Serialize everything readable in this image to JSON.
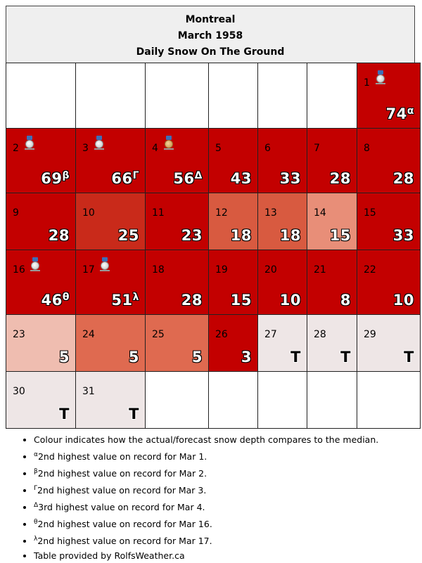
{
  "header": {
    "city": "Montreal",
    "month": "March 1958",
    "subtitle": "Daily Snow On The Ground"
  },
  "colors": {
    "deep_red": "#c30000",
    "red_2": "#c92a1a",
    "red_mid": "#d85a40",
    "salmon": "#e88e78",
    "light_salmon": "#efbdb0",
    "orange_red": "#df6a50",
    "trace_grey": "#eee6e6",
    "empty": "#ffffff"
  },
  "weeks": [
    [
      {
        "day": "",
        "value": "",
        "sup": "",
        "medal": "",
        "color": "empty"
      },
      {
        "day": "",
        "value": "",
        "sup": "",
        "medal": "",
        "color": "empty"
      },
      {
        "day": "",
        "value": "",
        "sup": "",
        "medal": "",
        "color": "empty"
      },
      {
        "day": "",
        "value": "",
        "sup": "",
        "medal": "",
        "color": "empty"
      },
      {
        "day": "",
        "value": "",
        "sup": "",
        "medal": "",
        "color": "empty"
      },
      {
        "day": "",
        "value": "",
        "sup": "",
        "medal": "",
        "color": "empty"
      },
      {
        "day": "1",
        "value": "74",
        "sup": "α",
        "medal": "silver",
        "color": "deep_red"
      }
    ],
    [
      {
        "day": "2",
        "value": "69",
        "sup": "β",
        "medal": "silver",
        "color": "deep_red"
      },
      {
        "day": "3",
        "value": "66",
        "sup": "Γ",
        "medal": "silver",
        "color": "deep_red"
      },
      {
        "day": "4",
        "value": "56",
        "sup": "Δ",
        "medal": "bronze",
        "color": "deep_red"
      },
      {
        "day": "5",
        "value": "43",
        "sup": "",
        "medal": "",
        "color": "deep_red"
      },
      {
        "day": "6",
        "value": "33",
        "sup": "",
        "medal": "",
        "color": "deep_red"
      },
      {
        "day": "7",
        "value": "28",
        "sup": "",
        "medal": "",
        "color": "deep_red"
      },
      {
        "day": "8",
        "value": "28",
        "sup": "",
        "medal": "",
        "color": "deep_red"
      }
    ],
    [
      {
        "day": "9",
        "value": "28",
        "sup": "",
        "medal": "",
        "color": "deep_red"
      },
      {
        "day": "10",
        "value": "25",
        "sup": "",
        "medal": "",
        "color": "red_2"
      },
      {
        "day": "11",
        "value": "23",
        "sup": "",
        "medal": "",
        "color": "deep_red"
      },
      {
        "day": "12",
        "value": "18",
        "sup": "",
        "medal": "",
        "color": "red_mid"
      },
      {
        "day": "13",
        "value": "18",
        "sup": "",
        "medal": "",
        "color": "red_mid"
      },
      {
        "day": "14",
        "value": "15",
        "sup": "",
        "medal": "",
        "color": "salmon"
      },
      {
        "day": "15",
        "value": "33",
        "sup": "",
        "medal": "",
        "color": "deep_red"
      }
    ],
    [
      {
        "day": "16",
        "value": "46",
        "sup": "θ",
        "medal": "silver",
        "color": "deep_red"
      },
      {
        "day": "17",
        "value": "51",
        "sup": "λ",
        "medal": "silver",
        "color": "deep_red"
      },
      {
        "day": "18",
        "value": "28",
        "sup": "",
        "medal": "",
        "color": "deep_red"
      },
      {
        "day": "19",
        "value": "15",
        "sup": "",
        "medal": "",
        "color": "deep_red"
      },
      {
        "day": "20",
        "value": "10",
        "sup": "",
        "medal": "",
        "color": "deep_red"
      },
      {
        "day": "21",
        "value": "8",
        "sup": "",
        "medal": "",
        "color": "deep_red"
      },
      {
        "day": "22",
        "value": "10",
        "sup": "",
        "medal": "",
        "color": "deep_red"
      }
    ],
    [
      {
        "day": "23",
        "value": "5",
        "sup": "",
        "medal": "",
        "color": "light_salmon"
      },
      {
        "day": "24",
        "value": "5",
        "sup": "",
        "medal": "",
        "color": "orange_red"
      },
      {
        "day": "25",
        "value": "5",
        "sup": "",
        "medal": "",
        "color": "orange_red"
      },
      {
        "day": "26",
        "value": "3",
        "sup": "",
        "medal": "",
        "color": "deep_red"
      },
      {
        "day": "27",
        "value": "T",
        "sup": "",
        "medal": "",
        "color": "trace_grey"
      },
      {
        "day": "28",
        "value": "T",
        "sup": "",
        "medal": "",
        "color": "trace_grey"
      },
      {
        "day": "29",
        "value": "T",
        "sup": "",
        "medal": "",
        "color": "trace_grey"
      }
    ],
    [
      {
        "day": "30",
        "value": "T",
        "sup": "",
        "medal": "",
        "color": "trace_grey"
      },
      {
        "day": "31",
        "value": "T",
        "sup": "",
        "medal": "",
        "color": "trace_grey"
      },
      {
        "day": "",
        "value": "",
        "sup": "",
        "medal": "",
        "color": "empty"
      },
      {
        "day": "",
        "value": "",
        "sup": "",
        "medal": "",
        "color": "empty"
      },
      {
        "day": "",
        "value": "",
        "sup": "",
        "medal": "",
        "color": "empty"
      },
      {
        "day": "",
        "value": "",
        "sup": "",
        "medal": "",
        "color": "empty"
      },
      {
        "day": "",
        "value": "",
        "sup": "",
        "medal": "",
        "color": "empty"
      }
    ]
  ],
  "notes": [
    {
      "sup": "",
      "text": "Colour indicates how the actual/forecast snow depth compares to the median."
    },
    {
      "sup": "α",
      "text": "2nd highest value on record for Mar 1."
    },
    {
      "sup": "β",
      "text": "2nd highest value on record for Mar 2."
    },
    {
      "sup": "Γ",
      "text": "2nd highest value on record for Mar 3."
    },
    {
      "sup": "Δ",
      "text": "3rd highest value on record for Mar 4."
    },
    {
      "sup": "θ",
      "text": "2nd highest value on record for Mar 16."
    },
    {
      "sup": "λ",
      "text": "2nd highest value on record for Mar 17."
    },
    {
      "sup": "",
      "text": "Table provided by RolfsWeather.ca"
    }
  ]
}
